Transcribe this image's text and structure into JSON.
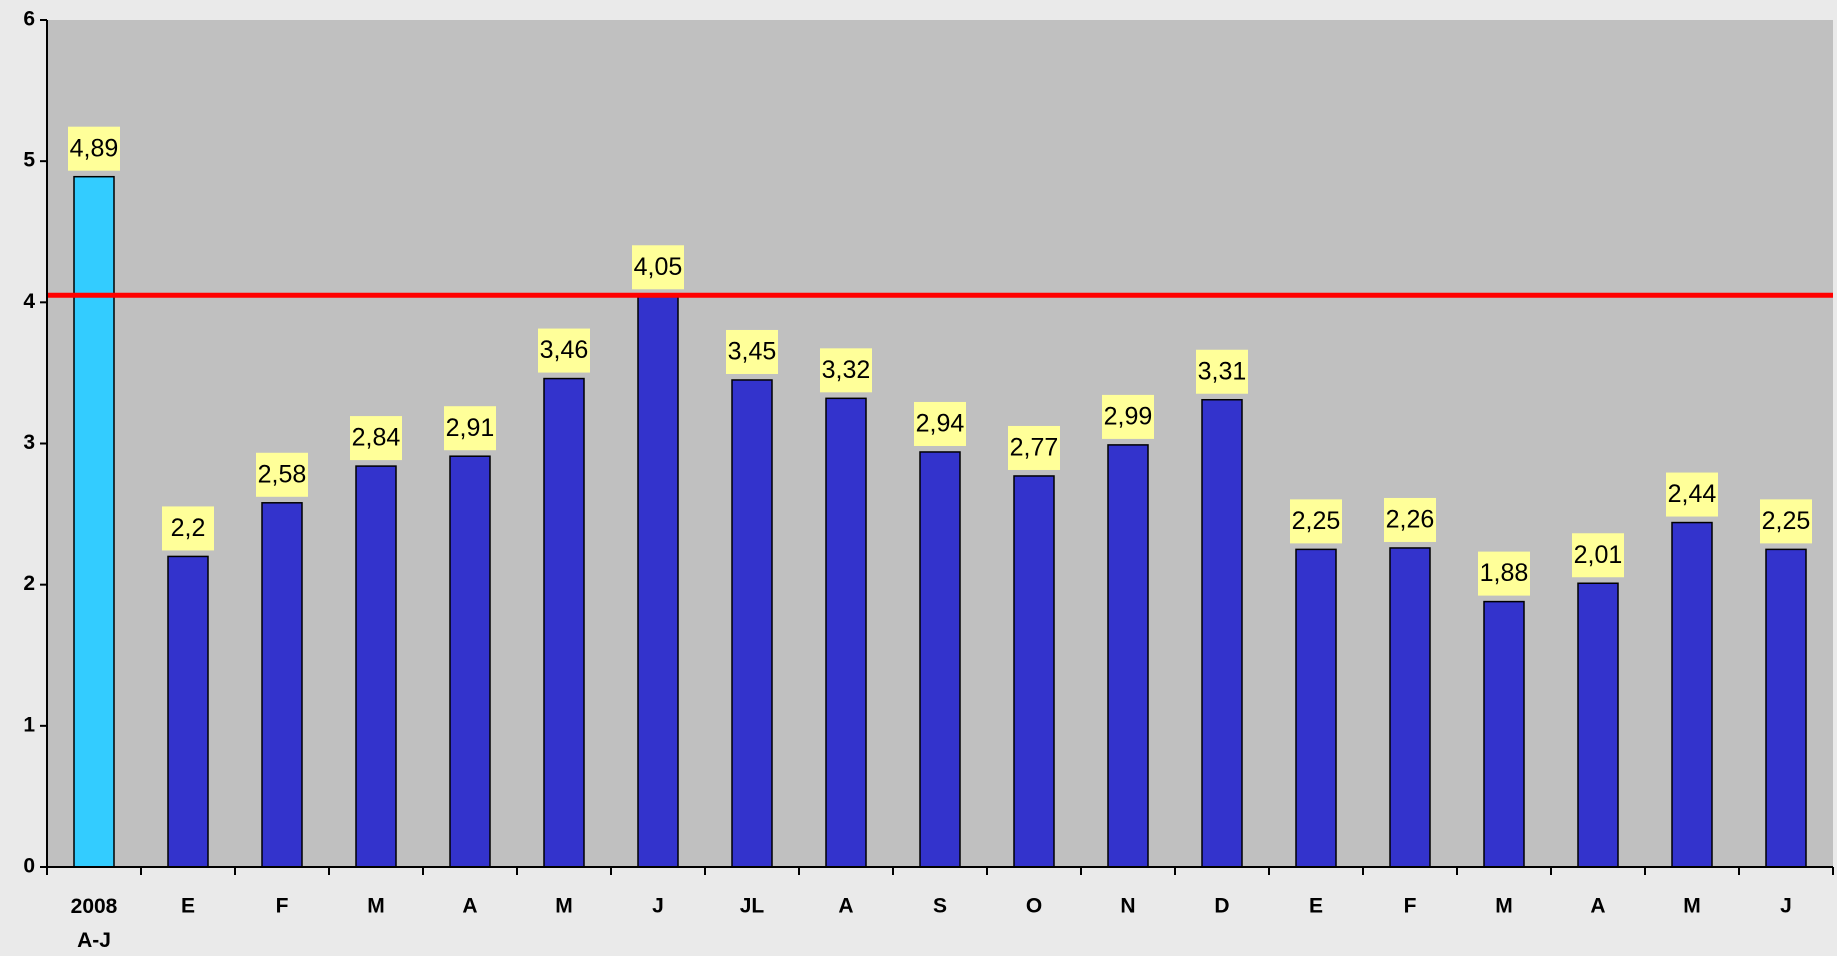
{
  "chart_data": {
    "type": "bar",
    "categories": [
      "2008 A-J",
      "E",
      "F",
      "M",
      "A",
      "M",
      "J",
      "JL",
      "A",
      "S",
      "O",
      "N",
      "D",
      "E",
      "F",
      "M",
      "A",
      "M",
      "J"
    ],
    "values": [
      4.89,
      2.2,
      2.58,
      2.84,
      2.91,
      3.46,
      4.05,
      3.45,
      3.32,
      2.94,
      2.77,
      2.99,
      3.31,
      2.25,
      2.26,
      1.88,
      2.01,
      2.44,
      2.25
    ],
    "value_labels": [
      "4,89",
      "2,2",
      "2,58",
      "2,84",
      "2,91",
      "3,46",
      "4,05",
      "3,45",
      "3,32",
      "2,94",
      "2,77",
      "2,99",
      "3,31",
      "2,25",
      "2,26",
      "1,88",
      "2,01",
      "2,44",
      "2,25"
    ],
    "colors": [
      "#33ccff",
      "#3333cc",
      "#3333cc",
      "#3333cc",
      "#3333cc",
      "#3333cc",
      "#3333cc",
      "#3333cc",
      "#3333cc",
      "#3333cc",
      "#3333cc",
      "#3333cc",
      "#3333cc",
      "#3333cc",
      "#3333cc",
      "#3333cc",
      "#3333cc",
      "#3333cc",
      "#3333cc"
    ],
    "reference_line": {
      "value": 4.05,
      "color": "#ff0000"
    },
    "ylim": [
      0,
      6
    ],
    "yticks": [
      0,
      1,
      2,
      3,
      4,
      5,
      6
    ],
    "grid": false
  }
}
